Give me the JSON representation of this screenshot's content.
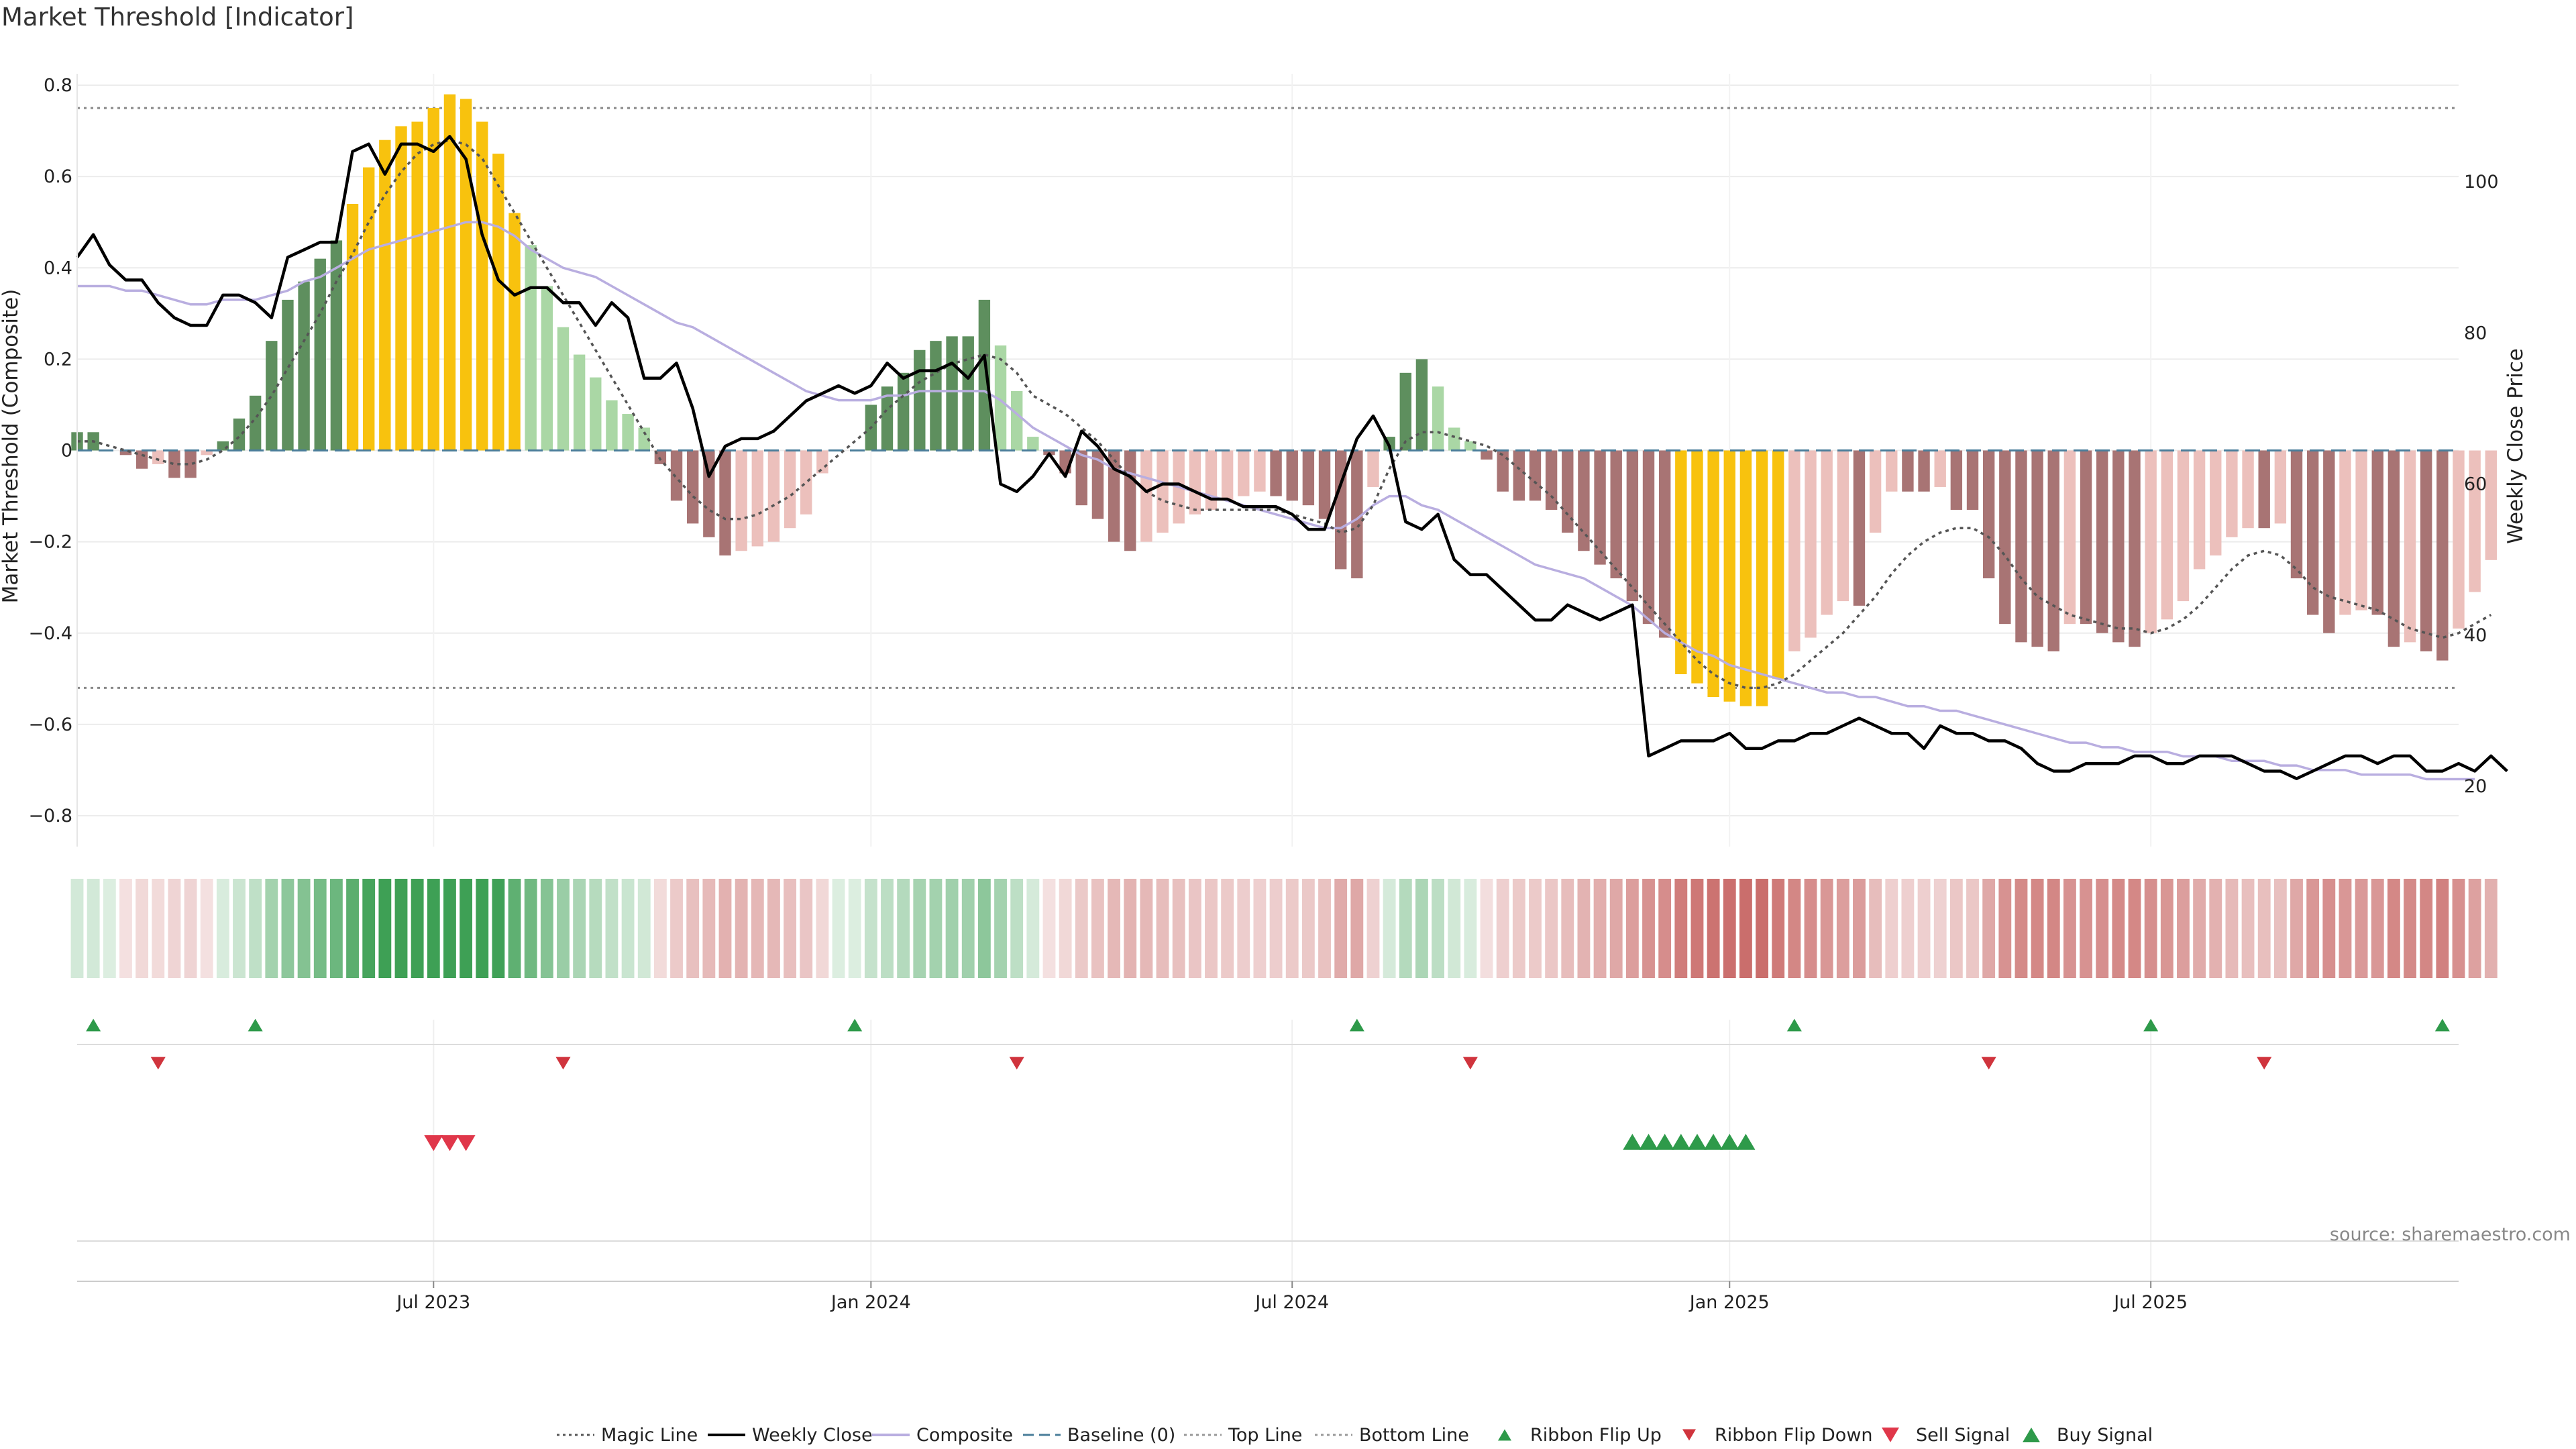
{
  "chart_data": {
    "type": "bar",
    "title": "Market Threshold [Indicator]",
    "ylabel": "Market Threshold (Composite)",
    "ylabel_right": "Weekly Close Price",
    "source": "source: sharemaestro.com",
    "ylim": [
      -0.85,
      0.82
    ],
    "ylim_right": [
      14,
      114
    ],
    "yticks": [
      "0.8",
      "0.6",
      "0.4",
      "0.2",
      "0",
      "−0.2",
      "−0.4",
      "−0.6",
      "−0.8"
    ],
    "yticks_right": [
      "100",
      "80",
      "60",
      "40",
      "20"
    ],
    "x_start_week": 0,
    "x_end_week": 147,
    "xticks": [
      {
        "label": "Jul 2023",
        "week": 22
      },
      {
        "label": "Jan 2024",
        "week": 49
      },
      {
        "label": "Jul 2024",
        "week": 75
      },
      {
        "label": "Jan 2025",
        "week": 102
      },
      {
        "label": "Jul 2025",
        "week": 128
      }
    ],
    "top_line": 0.75,
    "bottom_line": -0.52,
    "baseline": 0,
    "histogram": [
      0.04,
      0.04,
      0,
      -0.01,
      -0.04,
      -0.03,
      -0.06,
      -0.06,
      -0.01,
      0.02,
      0.07,
      0.12,
      0.24,
      0.33,
      0.37,
      0.42,
      0.46,
      0.54,
      0.62,
      0.68,
      0.71,
      0.72,
      0.75,
      0.78,
      0.77,
      0.72,
      0.65,
      0.52,
      0.45,
      0.36,
      0.27,
      0.21,
      0.16,
      0.11,
      0.08,
      0.05,
      -0.03,
      -0.11,
      -0.16,
      -0.19,
      -0.23,
      -0.22,
      -0.21,
      -0.2,
      -0.17,
      -0.14,
      -0.05,
      0,
      0,
      0.1,
      0.14,
      0.17,
      0.22,
      0.24,
      0.25,
      0.25,
      0.33,
      0.23,
      0.13,
      0.03,
      -0.01,
      -0.05,
      -0.12,
      -0.15,
      -0.2,
      -0.22,
      -0.2,
      -0.18,
      -0.16,
      -0.14,
      -0.13,
      -0.11,
      -0.1,
      -0.09,
      -0.1,
      -0.11,
      -0.12,
      -0.15,
      -0.26,
      -0.28,
      -0.08,
      0.03,
      0.17,
      0.2,
      0.14,
      0.05,
      0.02,
      -0.02,
      -0.09,
      -0.11,
      -0.11,
      -0.13,
      -0.18,
      -0.22,
      -0.25,
      -0.28,
      -0.33,
      -0.38,
      -0.41,
      -0.49,
      -0.51,
      -0.54,
      -0.55,
      -0.56,
      -0.56,
      -0.5,
      -0.44,
      -0.41,
      -0.36,
      -0.33,
      -0.34,
      -0.18,
      -0.09,
      -0.09,
      -0.09,
      -0.08,
      -0.13,
      -0.13,
      -0.28,
      -0.38,
      -0.42,
      -0.43,
      -0.44,
      -0.38,
      -0.38,
      -0.4,
      -0.42,
      -0.43,
      -0.4,
      -0.37,
      -0.33,
      -0.26,
      -0.23,
      -0.19,
      -0.17,
      -0.17,
      -0.16,
      -0.28,
      -0.36,
      -0.4,
      -0.36,
      -0.35,
      -0.36,
      -0.43,
      -0.42,
      -0.44,
      -0.46,
      -0.39,
      -0.31,
      -0.24
    ],
    "weekly_close": [
      90,
      93,
      89,
      87,
      87,
      84,
      82,
      81,
      81,
      85,
      85,
      84,
      82,
      90,
      91,
      92,
      92,
      104,
      105,
      101,
      105,
      105,
      104,
      106,
      103,
      93,
      87,
      85,
      86,
      86,
      84,
      84,
      81,
      84,
      82,
      74,
      74,
      76,
      70,
      61,
      65,
      66,
      66,
      67,
      69,
      71,
      72,
      73,
      72,
      73,
      76,
      74,
      75,
      75,
      76,
      74,
      77,
      60,
      59,
      61,
      64,
      61,
      67,
      65,
      62,
      61,
      59,
      60,
      60,
      59,
      58,
      58,
      57,
      57,
      57,
      56,
      54,
      54,
      60,
      66,
      69,
      65,
      55,
      54,
      56,
      50,
      48,
      48,
      46,
      44,
      42,
      42,
      44,
      43,
      42,
      43,
      44,
      24,
      25,
      26,
      26,
      26,
      27,
      25,
      25,
      26,
      26,
      27,
      27,
      28,
      29,
      28,
      27,
      27,
      25,
      28,
      27,
      27,
      26,
      26,
      25,
      23,
      22,
      22,
      23,
      23,
      23,
      24,
      24,
      23,
      23,
      24,
      24,
      24,
      23,
      22,
      22,
      21,
      22,
      23,
      24,
      24,
      23,
      24,
      24,
      22,
      22,
      23,
      22,
      24,
      22
    ],
    "composite": [
      0.36,
      0.36,
      0.36,
      0.35,
      0.35,
      0.34,
      0.33,
      0.32,
      0.32,
      0.33,
      0.33,
      0.33,
      0.34,
      0.35,
      0.37,
      0.38,
      0.4,
      0.42,
      0.44,
      0.45,
      0.46,
      0.47,
      0.48,
      0.49,
      0.5,
      0.5,
      0.49,
      0.47,
      0.44,
      0.42,
      0.4,
      0.39,
      0.38,
      0.36,
      0.34,
      0.32,
      0.3,
      0.28,
      0.27,
      0.25,
      0.23,
      0.21,
      0.19,
      0.17,
      0.15,
      0.13,
      0.12,
      0.11,
      0.11,
      0.11,
      0.12,
      0.12,
      0.13,
      0.13,
      0.13,
      0.13,
      0.13,
      0.11,
      0.08,
      0.05,
      0.03,
      0.01,
      -0.01,
      -0.02,
      -0.04,
      -0.05,
      -0.06,
      -0.07,
      -0.08,
      -0.09,
      -0.1,
      -0.11,
      -0.12,
      -0.13,
      -0.14,
      -0.15,
      -0.16,
      -0.17,
      -0.17,
      -0.15,
      -0.12,
      -0.1,
      -0.1,
      -0.12,
      -0.13,
      -0.15,
      -0.17,
      -0.19,
      -0.21,
      -0.23,
      -0.25,
      -0.26,
      -0.27,
      -0.28,
      -0.3,
      -0.32,
      -0.34,
      -0.37,
      -0.4,
      -0.42,
      -0.44,
      -0.45,
      -0.47,
      -0.48,
      -0.49,
      -0.5,
      -0.51,
      -0.52,
      -0.53,
      -0.53,
      -0.54,
      -0.54,
      -0.55,
      -0.56,
      -0.56,
      -0.57,
      -0.57,
      -0.58,
      -0.59,
      -0.6,
      -0.61,
      -0.62,
      -0.63,
      -0.64,
      -0.64,
      -0.65,
      -0.65,
      -0.66,
      -0.66,
      -0.66,
      -0.67,
      -0.67,
      -0.67,
      -0.68,
      -0.68,
      -0.68,
      -0.69,
      -0.69,
      -0.7,
      -0.7,
      -0.7,
      -0.71,
      -0.71,
      -0.71,
      -0.71,
      -0.72,
      -0.72,
      -0.72,
      -0.72
    ],
    "magic_line": [
      0.02,
      0.02,
      0.01,
      0,
      -0.01,
      -0.02,
      -0.03,
      -0.03,
      -0.02,
      0,
      0.03,
      0.07,
      0.12,
      0.18,
      0.24,
      0.3,
      0.37,
      0.43,
      0.5,
      0.56,
      0.61,
      0.65,
      0.67,
      0.68,
      0.67,
      0.64,
      0.58,
      0.52,
      0.46,
      0.4,
      0.34,
      0.28,
      0.22,
      0.16,
      0.1,
      0.04,
      -0.02,
      -0.06,
      -0.1,
      -0.13,
      -0.15,
      -0.15,
      -0.14,
      -0.12,
      -0.1,
      -0.07,
      -0.04,
      -0.01,
      0.02,
      0.05,
      0.09,
      0.12,
      0.15,
      0.17,
      0.19,
      0.2,
      0.21,
      0.2,
      0.17,
      0.12,
      0.1,
      0.08,
      0.05,
      0.02,
      -0.02,
      -0.06,
      -0.09,
      -0.11,
      -0.12,
      -0.13,
      -0.13,
      -0.13,
      -0.13,
      -0.13,
      -0.13,
      -0.14,
      -0.15,
      -0.16,
      -0.18,
      -0.17,
      -0.12,
      -0.04,
      0.02,
      0.04,
      0.04,
      0.03,
      0.02,
      0.01,
      -0.01,
      -0.04,
      -0.07,
      -0.1,
      -0.14,
      -0.18,
      -0.22,
      -0.26,
      -0.3,
      -0.34,
      -0.38,
      -0.42,
      -0.46,
      -0.49,
      -0.51,
      -0.52,
      -0.52,
      -0.51,
      -0.49,
      -0.46,
      -0.43,
      -0.4,
      -0.36,
      -0.32,
      -0.27,
      -0.23,
      -0.2,
      -0.18,
      -0.17,
      -0.17,
      -0.19,
      -0.23,
      -0.28,
      -0.32,
      -0.34,
      -0.36,
      -0.37,
      -0.38,
      -0.39,
      -0.39,
      -0.4,
      -0.39,
      -0.37,
      -0.34,
      -0.3,
      -0.26,
      -0.23,
      -0.22,
      -0.23,
      -0.26,
      -0.3,
      -0.32,
      -0.33,
      -0.34,
      -0.35,
      -0.37,
      -0.39,
      -0.4,
      -0.41,
      -0.4,
      -0.38,
      -0.36
    ],
    "ribbon_flip_up": [
      1,
      11,
      48,
      79,
      106,
      128,
      146
    ],
    "ribbon_flip_down": [
      5,
      30,
      58,
      86,
      118,
      135
    ],
    "sell_signal": [
      22,
      23,
      24
    ],
    "buy_signal": [
      96,
      97,
      98,
      99,
      100,
      101,
      102,
      103
    ],
    "legend": [
      {
        "label": "Magic Line",
        "kind": "dotted",
        "color": "#555555"
      },
      {
        "label": "Weekly Close",
        "kind": "line",
        "color": "#000000"
      },
      {
        "label": "Composite",
        "kind": "line",
        "color": "#b9aee0"
      },
      {
        "label": "Baseline (0)",
        "kind": "dashed",
        "color": "#4a7d9a"
      },
      {
        "label": "Top Line",
        "kind": "dotted",
        "color": "#999999"
      },
      {
        "label": "Bottom Line",
        "kind": "dotted",
        "color": "#999999"
      },
      {
        "label": "Ribbon Flip Up",
        "kind": "tri-up-small",
        "color": "#2e9a4a"
      },
      {
        "label": "Ribbon Flip Down",
        "kind": "tri-down-small",
        "color": "#d0343d"
      },
      {
        "label": "Sell Signal",
        "kind": "tri-down",
        "color": "#e0374a"
      },
      {
        "label": "Buy Signal",
        "kind": "tri-up",
        "color": "#2e9a4a"
      }
    ],
    "colors": {
      "pos_strong": "#5e8f5e",
      "pos_weak": "#aad7a5",
      "neg_strong": "#a87474",
      "neg_weak": "#ecc0bc",
      "extreme": "#f8c20e",
      "close": "#000000",
      "composite": "#b9aee0",
      "magic": "#555555",
      "baseline": "#4a7d9a"
    }
  }
}
